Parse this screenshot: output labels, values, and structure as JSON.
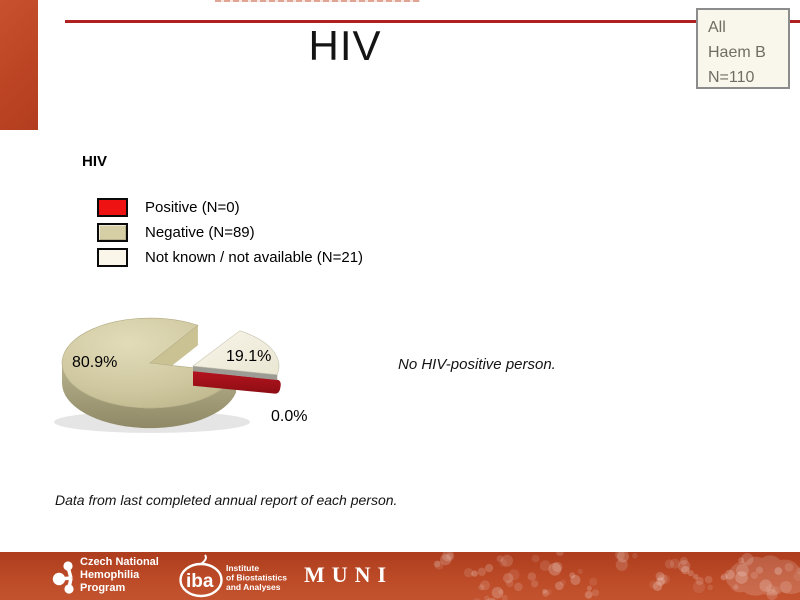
{
  "slide": {
    "title": "HIV",
    "info_box": {
      "line1": "All",
      "line2": "Haem B",
      "line3": "N=110"
    },
    "chart": {
      "heading": "HIV",
      "legend": [
        {
          "label": "Positive (N=0)"
        },
        {
          "label": "Negative (N=89)"
        },
        {
          "label": "Not known / not available (N=21)"
        }
      ],
      "annotation": "No HIV-positive person.",
      "footnote": "Data from last completed annual report of each person."
    },
    "footer": {
      "org1_line1": "Czech National",
      "org1_line2": "Hemophilia",
      "org1_line3": "Program",
      "org2_name": "iba",
      "org2_line1": "Institute",
      "org2_line2": "of Biostatistics",
      "org2_line3": "and Analyses",
      "org3_name": "MUNI"
    }
  },
  "chart_data": {
    "type": "pie",
    "title": "HIV",
    "categories": [
      "Positive",
      "Negative",
      "Not known / not available"
    ],
    "values": [
      0,
      89,
      21
    ],
    "percentages": [
      0.0,
      80.9,
      19.1
    ],
    "point_labels": {
      "positive": "0.0%",
      "negative": "80.9%",
      "not_known": "19.1%"
    },
    "total_n": 110,
    "colors": {
      "positive": "#ee1212",
      "negative": "#d6cfa6",
      "not_known": "#faf7ea"
    },
    "style": "3d exploded pie, not-known wedge exploded right",
    "legend_position": "top-left"
  }
}
